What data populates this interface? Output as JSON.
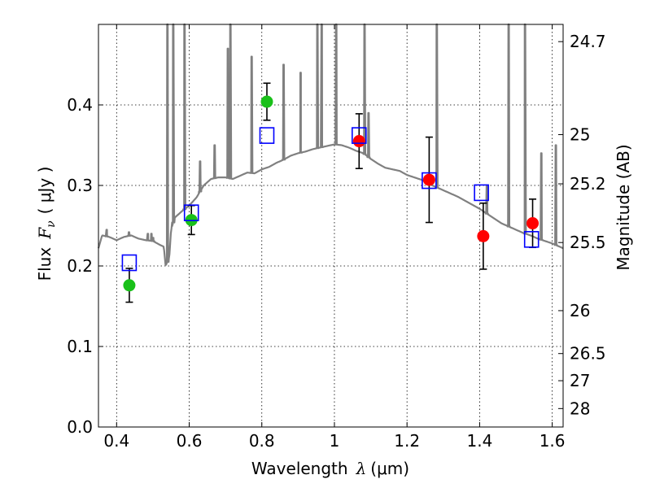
{
  "chart_data": {
    "type": "scatter",
    "title": "",
    "xlabel": "Wavelength",
    "xlabel_symbol": "λ",
    "xlabel_unit": "(μm)",
    "ylabel": "Flux",
    "ylabel_symbol": "F",
    "ylabel_sub": "ν",
    "ylabel_unit": "( μJy )",
    "y2label": "Magnitude (AB)",
    "xlim": [
      0.35,
      1.63
    ],
    "ylim": [
      0.0,
      0.5
    ],
    "xticks": [
      0.4,
      0.6,
      0.8,
      1.0,
      1.2,
      1.4,
      1.6
    ],
    "xtick_labels": [
      "0.4",
      "0.6",
      "0.8",
      "1",
      "1.2",
      "1.4",
      "1.6"
    ],
    "yticks": [
      0.0,
      0.1,
      0.2,
      0.3,
      0.4
    ],
    "ytick_labels": [
      "0.0",
      "0.1",
      "0.2",
      "0.3",
      "0.4"
    ],
    "y2ticks": [
      {
        "label": "24.7",
        "flux": 0.4786
      },
      {
        "label": "25",
        "flux": 0.3631
      },
      {
        "label": "25.2",
        "flux": 0.302
      },
      {
        "label": "25.5",
        "flux": 0.2291
      },
      {
        "label": "26",
        "flux": 0.1445
      },
      {
        "label": "26.5",
        "flux": 0.0912
      },
      {
        "label": "27",
        "flux": 0.0575
      },
      {
        "label": "28",
        "flux": 0.0229
      }
    ],
    "grid": true,
    "colors": {
      "green": "#19c019",
      "red": "#ff0000",
      "blue": "#0000ff",
      "model": "#808080",
      "errorbar": "#000000"
    },
    "series": [
      {
        "name": "observed-green",
        "marker": "circle",
        "color": "green",
        "x": [
          0.435,
          0.606,
          0.814
        ],
        "y": [
          0.176,
          0.257,
          0.404
        ],
        "yerr": [
          0.021,
          0.018,
          0.023
        ]
      },
      {
        "name": "observed-red",
        "marker": "circle",
        "color": "red",
        "x": [
          1.068,
          1.261,
          1.41,
          1.546
        ],
        "y": [
          0.355,
          0.307,
          0.237,
          0.253
        ],
        "yerr": [
          0.034,
          0.053,
          0.041,
          0.03
        ]
      },
      {
        "name": "model-photometry",
        "marker": "square-open",
        "color": "blue",
        "x": [
          0.435,
          0.606,
          0.814,
          1.068,
          1.261,
          1.405,
          1.543
        ],
        "y": [
          0.204,
          0.266,
          0.362,
          0.362,
          0.306,
          0.291,
          0.233
        ]
      },
      {
        "name": "model-spectrum",
        "type": "line",
        "color": "model",
        "x": [
          0.35,
          0.36,
          0.38,
          0.4,
          0.42,
          0.44,
          0.46,
          0.48,
          0.5,
          0.52,
          0.53,
          0.535,
          0.545,
          0.55,
          0.56,
          0.58,
          0.6,
          0.62,
          0.64,
          0.66,
          0.68,
          0.7,
          0.72,
          0.74,
          0.76,
          0.78,
          0.8,
          0.82,
          0.84,
          0.86,
          0.88,
          0.9,
          0.92,
          0.94,
          0.96,
          0.98,
          1.0,
          1.02,
          1.04,
          1.06,
          1.08,
          1.1,
          1.12,
          1.14,
          1.16,
          1.18,
          1.2,
          1.22,
          1.24,
          1.26,
          1.28,
          1.3,
          1.32,
          1.34,
          1.36,
          1.38,
          1.4,
          1.42,
          1.44,
          1.46,
          1.48,
          1.5,
          1.52,
          1.54,
          1.56,
          1.58,
          1.6,
          1.63
        ],
        "y": [
          0.222,
          0.238,
          0.236,
          0.232,
          0.236,
          0.238,
          0.234,
          0.232,
          0.231,
          0.226,
          0.224,
          0.2,
          0.21,
          0.245,
          0.26,
          0.268,
          0.275,
          0.285,
          0.3,
          0.308,
          0.31,
          0.31,
          0.308,
          0.312,
          0.316,
          0.315,
          0.32,
          0.323,
          0.328,
          0.332,
          0.337,
          0.34,
          0.342,
          0.345,
          0.347,
          0.349,
          0.351,
          0.35,
          0.347,
          0.343,
          0.34,
          0.333,
          0.327,
          0.322,
          0.32,
          0.318,
          0.313,
          0.31,
          0.307,
          0.302,
          0.298,
          0.294,
          0.29,
          0.286,
          0.281,
          0.276,
          0.271,
          0.265,
          0.259,
          0.253,
          0.249,
          0.245,
          0.241,
          0.238,
          0.234,
          0.231,
          0.228,
          0.222
        ],
        "emission_lines": [
          {
            "x": 0.3727,
            "peak": 0.245
          },
          {
            "x": 0.434,
            "peak": 0.242
          },
          {
            "x": 0.4861,
            "peak": 0.24
          },
          {
            "x": 0.4959,
            "peak": 0.24
          },
          {
            "x": 0.5007,
            "peak": 0.235
          },
          {
            "x": 0.54,
            "peak": 0.5
          },
          {
            "x": 0.556,
            "peak": 0.5
          },
          {
            "x": 0.587,
            "peak": 0.5
          },
          {
            "x": 0.63,
            "peak": 0.33
          },
          {
            "x": 0.67,
            "peak": 0.35
          },
          {
            "x": 0.7065,
            "peak": 0.47
          },
          {
            "x": 0.7135,
            "peak": 0.5
          },
          {
            "x": 0.772,
            "peak": 0.46
          },
          {
            "x": 0.86,
            "peak": 0.45
          },
          {
            "x": 0.9069,
            "peak": 0.44
          },
          {
            "x": 0.9531,
            "peak": 0.5
          },
          {
            "x": 0.965,
            "peak": 0.5
          },
          {
            "x": 1.005,
            "peak": 0.5
          },
          {
            "x": 1.083,
            "peak": 0.5
          },
          {
            "x": 1.094,
            "peak": 0.39
          },
          {
            "x": 1.282,
            "peak": 0.5
          },
          {
            "x": 1.42,
            "peak": 0.3
          },
          {
            "x": 1.48,
            "peak": 0.5
          },
          {
            "x": 1.525,
            "peak": 0.5
          },
          {
            "x": 1.57,
            "peak": 0.34
          },
          {
            "x": 1.61,
            "peak": 0.35
          }
        ]
      }
    ]
  }
}
